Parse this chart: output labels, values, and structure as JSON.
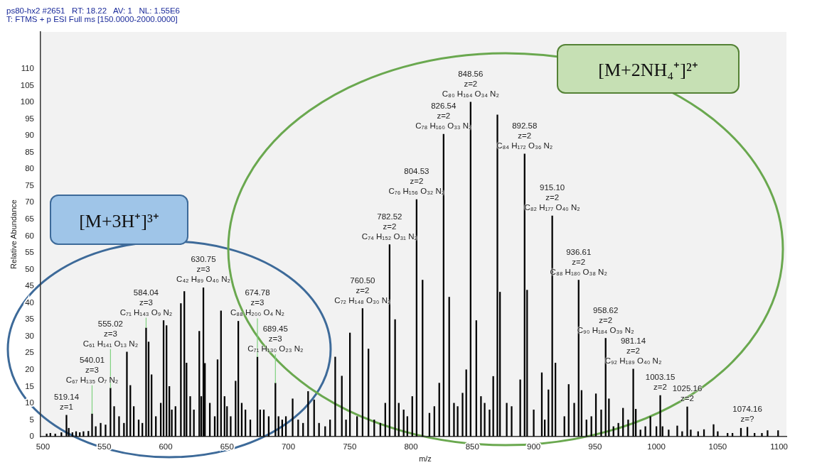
{
  "chart_data": {
    "type": "bar",
    "title": "ps80-hx2 #2651   RT: 18.22   AV: 1   NL: 1.55E6",
    "subtitle": "T: FTMS + p ESI Full ms [150.0000-2000.0000]",
    "xlabel": "m/z",
    "ylabel": "Relative Abundance",
    "color": "#000000",
    "x": [
      503,
      506,
      510,
      515,
      519.14,
      521,
      524,
      527,
      530,
      533,
      537,
      540.01,
      543,
      547,
      551,
      555.02,
      558,
      562,
      566,
      568.4,
      571.2,
      574,
      578,
      581,
      584.04,
      586.1,
      588.5,
      592,
      596,
      598.3,
      600.7,
      603,
      605,
      608,
      612.4,
      615.2,
      617,
      620,
      623,
      627.4,
      629,
      630.75,
      632,
      636,
      640,
      642.3,
      645.1,
      648,
      650,
      653,
      657,
      659.2,
      662,
      665,
      669,
      674.78,
      677,
      680,
      684,
      689.45,
      692,
      695,
      698,
      703.5,
      708,
      712,
      716.1,
      721,
      725,
      730,
      734,
      738.2,
      743.6,
      747,
      750.2,
      756,
      760.5,
      765.3,
      770,
      775,
      779,
      782.52,
      787,
      790,
      794,
      797,
      801,
      804.53,
      809.4,
      815,
      819,
      823,
      826.54,
      831.1,
      835,
      838,
      842,
      845,
      848.56,
      853.2,
      857,
      860,
      864,
      867,
      870.4,
      872.5,
      878,
      882,
      889,
      892.58,
      894.6,
      900,
      906.6,
      909,
      912,
      915.1,
      917.7,
      925,
      928.5,
      933,
      936.61,
      939,
      943,
      947,
      950.7,
      955,
      958.62,
      961.3,
      965,
      969,
      972.8,
      977,
      981.14,
      983.2,
      987,
      991,
      995.1,
      1000,
      1003.15,
      1005,
      1010,
      1017,
      1021,
      1025.16,
      1028,
      1034,
      1038.8,
      1046.6,
      1050,
      1058,
      1062,
      1068.9,
      1074.16,
      1080,
      1086,
      1090.6,
      1099.2
    ],
    "values": [
      0.8,
      1,
      0.8,
      1.2,
      6.4,
      2.5,
      1.2,
      1.5,
      1.2,
      1.5,
      1.6,
      6.8,
      3,
      4,
      3.5,
      14.5,
      9,
      6,
      4,
      25.3,
      15.3,
      9,
      5,
      4,
      32.5,
      28.3,
      18.5,
      6,
      10,
      34.7,
      33.2,
      15,
      8,
      9,
      39.8,
      43.4,
      22,
      12,
      8,
      31.5,
      12,
      44.5,
      21.9,
      10,
      6,
      23,
      37.6,
      12,
      9,
      6,
      16.6,
      34.5,
      10,
      8,
      5,
      23.8,
      8,
      8,
      6,
      16,
      6,
      5,
      6,
      11.3,
      5,
      4,
      13.5,
      11,
      4,
      3,
      5,
      23.8,
      18.1,
      5,
      31,
      6,
      38.3,
      26.2,
      5,
      4,
      10,
      57.4,
      35,
      10,
      8,
      6,
      12,
      70.9,
      46.8,
      7,
      9,
      16,
      90.4,
      41.7,
      10,
      9,
      13,
      20,
      100,
      34.7,
      12,
      10,
      8,
      18,
      96.2,
      43.2,
      10,
      9,
      17,
      84.5,
      43.8,
      8,
      19.1,
      5,
      14,
      66,
      22,
      6,
      15.6,
      10,
      46.8,
      13.8,
      5,
      6,
      12.8,
      8,
      29.4,
      11.3,
      3,
      4,
      8.5,
      5,
      20.2,
      8.2,
      2,
      3,
      6,
      3,
      12.3,
      3,
      2,
      3.2,
      1.5,
      8.9,
      2,
      1.5,
      2.1,
      3.6,
      1.5,
      1,
      1,
      2.5,
      2.8,
      1,
      1,
      1.8,
      1.8
    ],
    "xlim": [
      498,
      1106
    ],
    "xticks": [
      500,
      550,
      600,
      650,
      700,
      750,
      800,
      850,
      900,
      950,
      1000,
      1050,
      1100
    ],
    "ylim": [
      0,
      121
    ],
    "yticks": [
      0,
      5,
      10,
      15,
      20,
      25,
      30,
      35,
      40,
      45,
      50,
      55,
      60,
      65,
      70,
      75,
      80,
      85,
      90,
      95,
      100,
      105,
      110
    ],
    "annotations": [
      "[M+3H⁺]³⁺",
      "[M+2NH₄⁺]²⁺",
      {
        "text": "519.14\nz=1",
        "x": 519.14,
        "y": 6.4
      },
      {
        "text": "540.01\nz=3\nC₆₇ H₁₃₅ O₇ N₂",
        "x": 540.01,
        "y": 6.8
      },
      {
        "text": "555.02\nz=3\nC₆₁ H₁₄₁ O₁₃ N₂",
        "x": 555.02,
        "y": 14.5
      },
      {
        "text": "584.04\nz=3\nC₇₁ H₁₄₃ O₉ N₂",
        "x": 584.04,
        "y": 32.5
      },
      {
        "text": "630.75\nz=3\nC₄₂ H₈₉ O₄₀ N₂",
        "x": 630.75,
        "y": 44.5
      },
      {
        "text": "674.78\nz=3\nC₈₈ H₂₀₀ O₄ N₂",
        "x": 674.78,
        "y": 23.8
      },
      {
        "text": "689.45\nz=3\nC₇₁ H₁₃₀ O₂₃ N₂",
        "x": 689.45,
        "y": 16
      },
      {
        "text": "760.50\nz=2\nC₇₂ H₁₄₈ O₃₀ N₂",
        "x": 760.5,
        "y": 38.3
      },
      {
        "text": "782.52\nz=2\nC₇₄ H₁₅₂ O₃₁ N₂",
        "x": 782.52,
        "y": 57.4
      },
      {
        "text": "804.53\nz=2\nC₇₆ H₁₅₆ O₃₂ N₂",
        "x": 804.53,
        "y": 70.9
      },
      {
        "text": "826.54\nz=2\nC₇₈ H₁₆₀ O₃₃ N₂",
        "x": 826.54,
        "y": 90.4
      },
      {
        "text": "848.56\nz=2\nC₈₀ H₁₆₄ O₃₄ N₂",
        "x": 848.56,
        "y": 100
      },
      {
        "text": "892.58\nz=2\nC₈₄ H₁₇₂ O₃₆ N₂",
        "x": 892.58,
        "y": 84.5
      },
      {
        "text": "915.10\nz=2\nC₈₂ H₁₇₇ O₄₀ N₂",
        "x": 915.1,
        "y": 66
      },
      {
        "text": "936.61\nz=2\nC₈₈ H₁₈₀ O₃₈ N₂",
        "x": 936.61,
        "y": 46.8
      },
      {
        "text": "958.62\nz=2\nC₉₀ H₁₈₄ O₃₉ N₂",
        "x": 958.62,
        "y": 29.4
      },
      {
        "text": "981.14\nz=2\nC₉₂ H₁₈₉ O₄₀ N₂",
        "x": 981.14,
        "y": 20.2
      },
      {
        "text": "1003.15\nz=2",
        "x": 1003.15,
        "y": 12.3
      },
      {
        "text": "1025.16\nz=2",
        "x": 1025.16,
        "y": 8.9
      },
      {
        "text": "1074.16\nz=?",
        "x": 1074.16,
        "y": 2.8
      }
    ]
  }
}
